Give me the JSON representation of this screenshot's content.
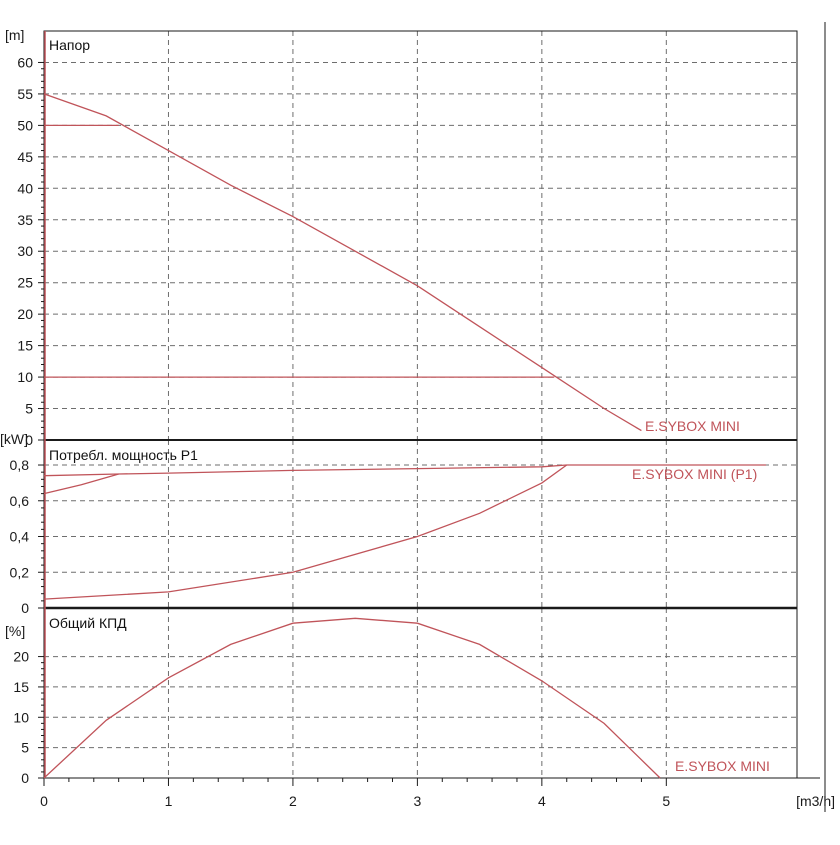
{
  "colors": {
    "curve": "#c0545a",
    "grid": "#6e6e6e",
    "frame": "#1a1a1a"
  },
  "x_axis": {
    "unit": "[m3/h]",
    "ticks": [
      0,
      1,
      2,
      3,
      4,
      5
    ],
    "range": [
      0,
      6.05
    ]
  },
  "chart_data": [
    {
      "type": "line",
      "title": "Напор",
      "ylabel": "[m]",
      "ylim": [
        0,
        65
      ],
      "yticks": [
        0,
        5,
        10,
        15,
        20,
        25,
        30,
        35,
        40,
        45,
        50,
        55,
        60
      ],
      "grid": true,
      "series": [
        {
          "name": "E.SYBOX MINI",
          "x": [
            0,
            0.5,
            1.0,
            1.5,
            2.0,
            2.5,
            3.0,
            3.5,
            4.0,
            4.5,
            4.8
          ],
          "y": [
            55,
            51.5,
            46,
            40.5,
            35.5,
            30,
            24.5,
            18,
            11.5,
            5,
            1.5
          ]
        },
        {
          "x": [
            0,
            0.6
          ],
          "y": [
            50,
            50
          ]
        },
        {
          "x": [
            0,
            4.1
          ],
          "y": [
            10,
            10
          ]
        }
      ]
    },
    {
      "type": "line",
      "title": "Потребл. мощность P1",
      "ylabel": "[kW]",
      "ylim": [
        0,
        0.94
      ],
      "yticks": [
        0,
        0.2,
        0.4,
        0.6,
        0.8
      ],
      "ytick_labels": [
        "0",
        "0,2",
        "0,4",
        "0,6",
        "0,8"
      ],
      "grid": true,
      "series": [
        {
          "name": "E.SYBOX MINI (P1)",
          "x": [
            0,
            0.6,
            1.0,
            2.0,
            3.0,
            4.0,
            4.2,
            5.8
          ],
          "y": [
            0.74,
            0.75,
            0.755,
            0.77,
            0.78,
            0.79,
            0.8,
            0.8
          ]
        },
        {
          "x": [
            0,
            0.3,
            0.6
          ],
          "y": [
            0.64,
            0.69,
            0.75
          ]
        },
        {
          "x": [
            0,
            1.0,
            2.0,
            3.0,
            3.5,
            4.0,
            4.2
          ],
          "y": [
            0.05,
            0.09,
            0.2,
            0.4,
            0.53,
            0.7,
            0.8
          ]
        }
      ]
    },
    {
      "type": "line",
      "title": "Общий КПД",
      "ylabel": "[%]",
      "ylim": [
        0,
        28
      ],
      "yticks": [
        0,
        5,
        10,
        15,
        20
      ],
      "grid": true,
      "series": [
        {
          "name": "E.SYBOX MINI",
          "x": [
            0,
            0.5,
            1.0,
            1.5,
            2.0,
            2.5,
            3.0,
            3.5,
            4.0,
            4.5,
            4.95
          ],
          "y": [
            0,
            9.5,
            16.5,
            22,
            25.5,
            26.3,
            25.5,
            22,
            16,
            9,
            0
          ]
        }
      ]
    }
  ]
}
